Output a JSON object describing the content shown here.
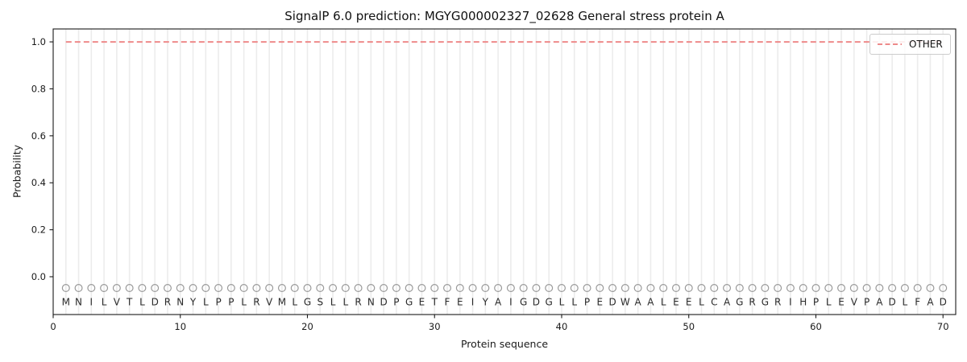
{
  "chart_data": {
    "type": "line",
    "title": "SignalP 6.0 prediction: MGYG000002327_02628 General stress protein A",
    "xlabel": "Protein sequence",
    "ylabel": "Probability",
    "xlim": [
      0,
      71
    ],
    "ylim": [
      -0.161,
      1.055
    ],
    "x_ticks": [
      0,
      10,
      20,
      30,
      40,
      50,
      60,
      70
    ],
    "y_ticks": [
      "0.0",
      "0.2",
      "0.4",
      "0.6",
      "0.8",
      "1.0"
    ],
    "grid": "vertical line at every residue position, light gray",
    "legend": {
      "position": "upper right",
      "entries": [
        {
          "label": "OTHER",
          "color": "#ee8a8a",
          "style": "dashed"
        }
      ]
    },
    "series": [
      {
        "name": "OTHER",
        "style": "dashed",
        "color": "#ee8a8a",
        "x_start": 1,
        "values": [
          1.0,
          1.0,
          1.0,
          1.0,
          1.0,
          1.0,
          1.0,
          1.0,
          1.0,
          1.0,
          1.0,
          1.0,
          1.0,
          1.0,
          1.0,
          1.0,
          1.0,
          1.0,
          1.0,
          1.0,
          1.0,
          1.0,
          1.0,
          1.0,
          1.0,
          1.0,
          1.0,
          1.0,
          1.0,
          1.0,
          1.0,
          1.0,
          1.0,
          1.0,
          1.0,
          1.0,
          1.0,
          1.0,
          1.0,
          1.0,
          1.0,
          1.0,
          1.0,
          1.0,
          1.0,
          1.0,
          1.0,
          1.0,
          1.0,
          1.0,
          1.0,
          1.0,
          1.0,
          1.0,
          1.0,
          1.0,
          1.0,
          1.0,
          1.0,
          1.0,
          1.0,
          1.0,
          1.0,
          1.0,
          1.0,
          1.0,
          1.0,
          1.0,
          1.0,
          1.0
        ]
      }
    ],
    "sequence": "MNILVTLDRNYLPPLRVMLGSLLRNDPGETFEIYAIGDGLLPEDWAALEELCAGRGRIHPLEVPADLFAD",
    "residue_markers": {
      "shape": "open-circle",
      "edge_color": "#9a9a9a",
      "y": -0.048
    },
    "letter_color": "#2a2a2a"
  },
  "colors": {
    "grid": "#ececec",
    "spine": "#1a1a1a",
    "tick_text": "#1a1a1a",
    "background": "#ffffff"
  }
}
